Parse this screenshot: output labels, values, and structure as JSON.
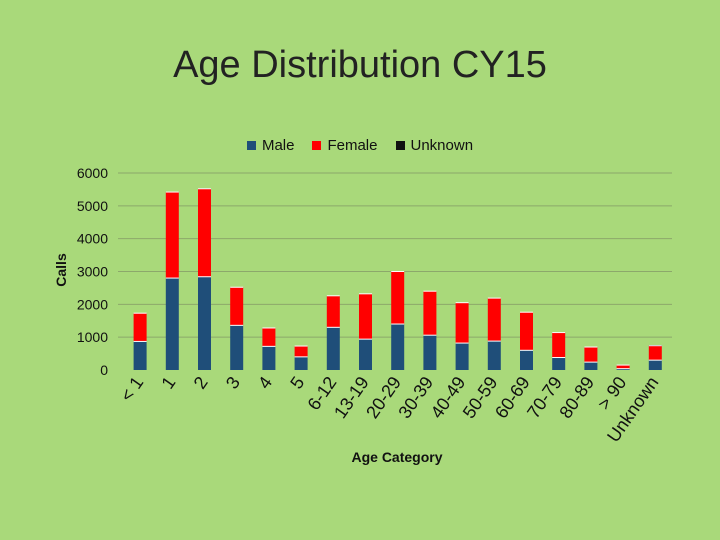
{
  "chart_data": {
    "type": "bar",
    "stacked": true,
    "title": "Age Distribution CY15",
    "xlabel": "Age Category",
    "ylabel": "Calls",
    "ylim": [
      0,
      6000
    ],
    "yticks": [
      0,
      1000,
      2000,
      3000,
      4000,
      5000,
      6000
    ],
    "grid": true,
    "legend_position": "top",
    "categories": [
      "< 1",
      "1",
      "2",
      "3",
      "4",
      "5",
      "6-12",
      "13-19",
      "20-29",
      "30-39",
      "40-49",
      "50-59",
      "60-69",
      "70-79",
      "80-89",
      "> 90",
      "Unknown"
    ],
    "series": [
      {
        "name": "Male",
        "color": "#1f4e79",
        "values": [
          870,
          2800,
          2840,
          1360,
          720,
          400,
          1300,
          940,
          1400,
          1060,
          820,
          880,
          600,
          380,
          240,
          40,
          300
        ]
      },
      {
        "name": "Female",
        "color": "#ff0000",
        "values": [
          860,
          2620,
          2680,
          1160,
          560,
          330,
          960,
          1380,
          1600,
          1340,
          1230,
          1310,
          1160,
          760,
          460,
          110,
          440
        ]
      },
      {
        "name": "Unknown",
        "color": "#111111",
        "values": [
          5,
          10,
          10,
          5,
          5,
          5,
          5,
          5,
          5,
          5,
          5,
          5,
          5,
          5,
          5,
          5,
          20
        ]
      }
    ]
  }
}
